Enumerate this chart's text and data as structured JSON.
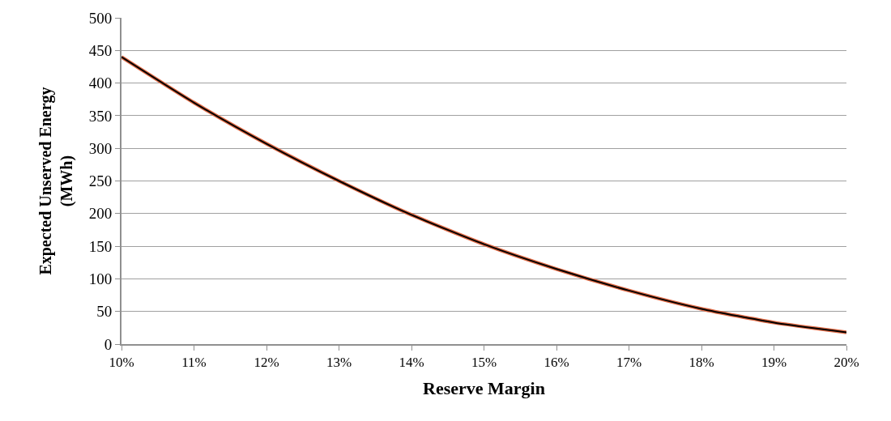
{
  "chart_data": {
    "type": "line",
    "xlabel": "Reserve Margin",
    "ylabel": "Expected Unserved Energy\n(MWh)",
    "x": [
      10,
      11,
      12,
      13,
      14,
      15,
      16,
      17,
      18,
      19,
      20
    ],
    "series": [
      {
        "color": "#e06a45",
        "values": [
          440,
          370,
          307,
          250,
          198,
          153,
          115,
          82,
          54,
          33,
          18
        ]
      },
      {
        "color": "#000000",
        "values": [
          440,
          370,
          307,
          250,
          198,
          153,
          115,
          82,
          54,
          33,
          18
        ]
      }
    ],
    "xlim": [
      10,
      20
    ],
    "xticks": [
      {
        "value": 10,
        "label": "10%"
      },
      {
        "value": 11,
        "label": "11%"
      },
      {
        "value": 12,
        "label": "12%"
      },
      {
        "value": 13,
        "label": "13%"
      },
      {
        "value": 14,
        "label": "14%"
      },
      {
        "value": 15,
        "label": "15%"
      },
      {
        "value": 16,
        "label": "16%"
      },
      {
        "value": 17,
        "label": "17%"
      },
      {
        "value": 18,
        "label": "18%"
      },
      {
        "value": 19,
        "label": "19%"
      },
      {
        "value": 20,
        "label": "20%"
      }
    ],
    "ylim": [
      0,
      500
    ],
    "yticks": [
      0,
      50,
      100,
      150,
      200,
      250,
      300,
      350,
      400,
      450,
      500
    ],
    "grid": "y",
    "marker": "none",
    "line_style": "solid"
  }
}
